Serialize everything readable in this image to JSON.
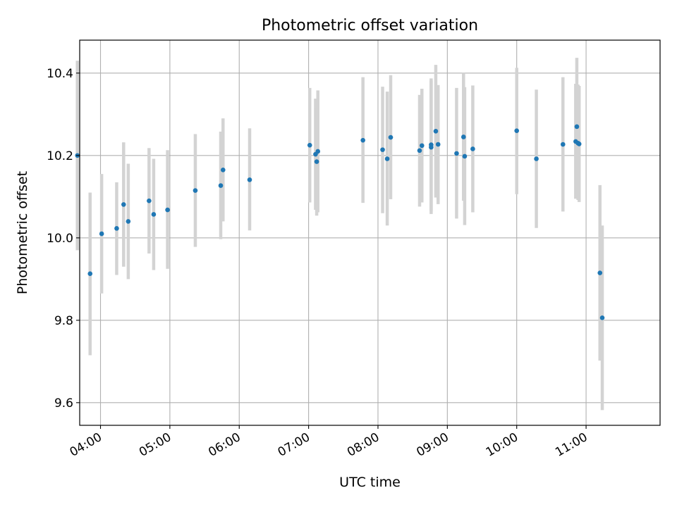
{
  "chart_data": {
    "type": "scatter",
    "title": "Photometric offset variation",
    "xlabel": "UTC time",
    "ylabel": "Photometric offset",
    "x_tick_labels": [
      "04:00",
      "05:00",
      "06:00",
      "07:00",
      "08:00",
      "09:00",
      "10:00",
      "11:00"
    ],
    "y_ticks": [
      9.6,
      9.8,
      10.0,
      10.2,
      10.4
    ],
    "y_tick_labels": [
      "9.6",
      "9.8",
      "10.0",
      "10.2",
      "10.4"
    ],
    "xlim": [
      "03:42",
      "12:04"
    ],
    "ylim": [
      9.545,
      10.48
    ],
    "grid": true,
    "error_bar_color": "#d3d3d3",
    "marker_color": "#1f77b4",
    "points": [
      {
        "x": "03:40",
        "y": 10.2,
        "low": 9.97,
        "high": 10.43
      },
      {
        "x": "03:51",
        "y": 9.913,
        "low": 9.715,
        "high": 10.11
      },
      {
        "x": "04:01",
        "y": 10.01,
        "low": 9.865,
        "high": 10.155
      },
      {
        "x": "04:14",
        "y": 10.023,
        "low": 9.91,
        "high": 10.135
      },
      {
        "x": "04:20",
        "y": 10.081,
        "low": 9.93,
        "high": 10.232
      },
      {
        "x": "04:24",
        "y": 10.04,
        "low": 9.9,
        "high": 10.18
      },
      {
        "x": "04:42",
        "y": 10.09,
        "low": 9.962,
        "high": 10.218
      },
      {
        "x": "04:46",
        "y": 10.057,
        "low": 9.922,
        "high": 10.192
      },
      {
        "x": "04:58",
        "y": 10.068,
        "low": 9.925,
        "high": 10.213
      },
      {
        "x": "05:22",
        "y": 10.115,
        "low": 9.978,
        "high": 10.252
      },
      {
        "x": "05:44",
        "y": 10.127,
        "low": 9.997,
        "high": 10.258
      },
      {
        "x": "05:46",
        "y": 10.165,
        "low": 10.04,
        "high": 10.29
      },
      {
        "x": "06:09",
        "y": 10.141,
        "low": 10.018,
        "high": 10.266
      },
      {
        "x": "07:01",
        "y": 10.225,
        "low": 10.086,
        "high": 10.364
      },
      {
        "x": "07:06",
        "y": 10.203,
        "low": 10.068,
        "high": 10.338
      },
      {
        "x": "07:07",
        "y": 10.185,
        "low": 10.054,
        "high": 10.315
      },
      {
        "x": "07:08",
        "y": 10.21,
        "low": 10.062,
        "high": 10.358
      },
      {
        "x": "07:47",
        "y": 10.237,
        "low": 10.085,
        "high": 10.39
      },
      {
        "x": "08:04",
        "y": 10.214,
        "low": 10.06,
        "high": 10.367
      },
      {
        "x": "08:08",
        "y": 10.192,
        "low": 10.03,
        "high": 10.355
      },
      {
        "x": "08:11",
        "y": 10.244,
        "low": 10.094,
        "high": 10.395
      },
      {
        "x": "08:36",
        "y": 10.212,
        "low": 10.076,
        "high": 10.347
      },
      {
        "x": "08:38",
        "y": 10.224,
        "low": 10.086,
        "high": 10.362
      },
      {
        "x": "08:46",
        "y": 10.226,
        "low": 10.065,
        "high": 10.387
      },
      {
        "x": "08:46",
        "y": 10.22,
        "low": 10.058,
        "high": 10.382
      },
      {
        "x": "08:50",
        "y": 10.259,
        "low": 10.098,
        "high": 10.42
      },
      {
        "x": "08:52",
        "y": 10.227,
        "low": 10.082,
        "high": 10.371
      },
      {
        "x": "09:08",
        "y": 10.205,
        "low": 10.047,
        "high": 10.364
      },
      {
        "x": "09:14",
        "y": 10.245,
        "low": 10.09,
        "high": 10.4
      },
      {
        "x": "09:15",
        "y": 10.198,
        "low": 10.031,
        "high": 10.366
      },
      {
        "x": "09:22",
        "y": 10.216,
        "low": 10.062,
        "high": 10.37
      },
      {
        "x": "10:00",
        "y": 10.26,
        "low": 10.106,
        "high": 10.413
      },
      {
        "x": "10:17",
        "y": 10.192,
        "low": 10.024,
        "high": 10.36
      },
      {
        "x": "10:40",
        "y": 10.227,
        "low": 10.064,
        "high": 10.39
      },
      {
        "x": "10:51",
        "y": 10.234,
        "low": 10.095,
        "high": 10.374
      },
      {
        "x": "10:52",
        "y": 10.27,
        "low": 10.105,
        "high": 10.437
      },
      {
        "x": "10:53",
        "y": 10.23,
        "low": 10.092,
        "high": 10.372
      },
      {
        "x": "10:54",
        "y": 10.228,
        "low": 10.087,
        "high": 10.369
      },
      {
        "x": "11:12",
        "y": 9.915,
        "low": 9.702,
        "high": 10.128
      },
      {
        "x": "11:14",
        "y": 9.806,
        "low": 9.582,
        "high": 10.03
      }
    ]
  }
}
